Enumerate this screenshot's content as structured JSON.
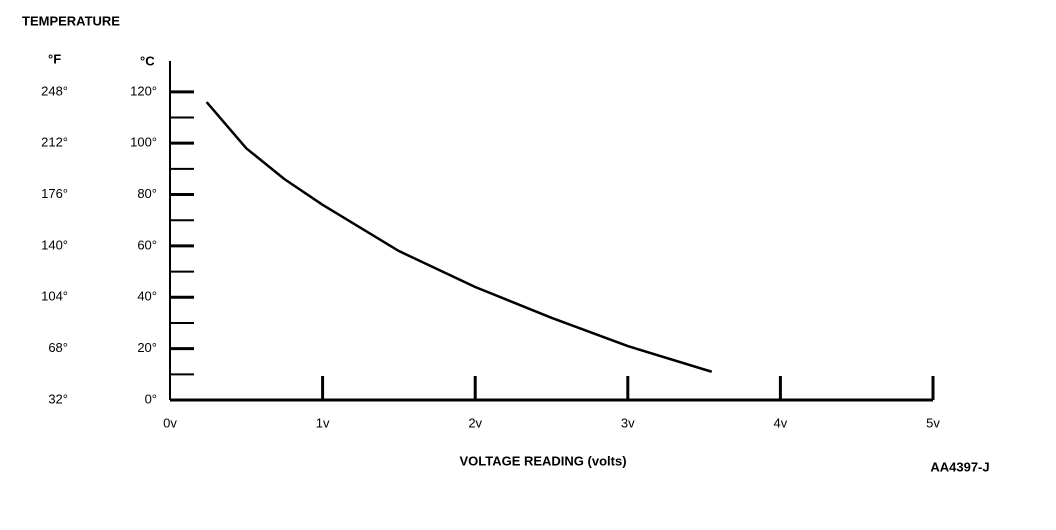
{
  "chart_data": {
    "type": "line",
    "title": "TEMPERATURE",
    "y2_label": "°F",
    "y_label": "°C",
    "x_label": "VOLTAGE READING (volts)",
    "figure_id": "AA4397-J",
    "x": [
      0.24,
      0.5,
      0.75,
      1,
      1.5,
      2,
      2.5,
      3,
      3.55
    ],
    "series": [
      {
        "name": "temperature",
        "color": "#000000",
        "values": [
          116,
          98,
          86,
          76,
          58,
          44,
          32,
          21,
          11
        ]
      }
    ],
    "xlim": [
      0,
      5
    ],
    "xticks": [
      {
        "value": 0,
        "label": "0v"
      },
      {
        "value": 1,
        "label": "1v"
      },
      {
        "value": 2,
        "label": "2v"
      },
      {
        "value": 3,
        "label": "3v"
      },
      {
        "value": 4,
        "label": "4v"
      },
      {
        "value": 5,
        "label": "5v"
      }
    ],
    "ylim": [
      0,
      132
    ],
    "yticks": [
      {
        "value": 0,
        "label": "0°"
      },
      {
        "value": 20,
        "label": "20°"
      },
      {
        "value": 40,
        "label": "40°"
      },
      {
        "value": 60,
        "label": "60°"
      },
      {
        "value": 80,
        "label": "80°"
      },
      {
        "value": 100,
        "label": "100°"
      },
      {
        "value": 120,
        "label": "120°"
      }
    ],
    "y2lim": [
      32,
      269.6
    ],
    "y2ticks": [
      {
        "value": 32,
        "label": "32°"
      },
      {
        "value": 68,
        "label": "68°"
      },
      {
        "value": 104,
        "label": "104°"
      },
      {
        "value": 140,
        "label": "140°"
      },
      {
        "value": 176,
        "label": "176°"
      },
      {
        "value": 212,
        "label": "212°"
      },
      {
        "value": 248,
        "label": "248°"
      }
    ]
  }
}
